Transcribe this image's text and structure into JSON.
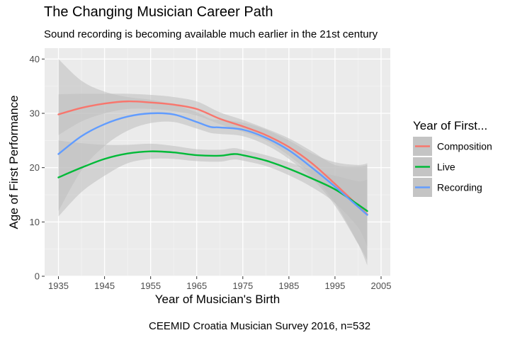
{
  "title": "The Changing Musician Career Path",
  "subtitle": "Sound recording is becoming available much earlier in the 21st century",
  "caption": "CEEMID Croatia Musician Survey 2016, n=532",
  "chart_data": {
    "type": "line",
    "title": "The Changing Musician Career Path",
    "subtitle": "Sound recording is becoming available much earlier in the 21st century",
    "xlabel": "Year of Musician's Birth",
    "ylabel": "Age of First Performance",
    "xlim": [
      1932,
      2007
    ],
    "ylim": [
      0,
      42
    ],
    "x_ticks": [
      1935,
      1945,
      1955,
      1965,
      1975,
      1985,
      1995,
      2005
    ],
    "y_ticks": [
      0,
      10,
      20,
      30,
      40
    ],
    "grid": true,
    "legend": {
      "title": "Year of First...",
      "position": "right"
    },
    "series": [
      {
        "name": "Composition",
        "color": "#F8766D",
        "band_color": "#bdbdbd",
        "x": [
          1935,
          1940,
          1945,
          1950,
          1955,
          1960,
          1965,
          1970,
          1975,
          1980,
          1985,
          1990,
          1995,
          2000,
          2002
        ],
        "y": [
          29.8,
          31.0,
          31.8,
          32.2,
          32.0,
          31.6,
          30.8,
          29.0,
          27.6,
          26.0,
          23.8,
          20.8,
          17.0,
          13.0,
          11.4
        ],
        "lower": [
          26.0,
          28.5,
          30.0,
          30.8,
          30.8,
          30.4,
          29.6,
          28.0,
          26.6,
          25.0,
          22.2,
          18.6,
          13.5,
          6.0,
          2.0
        ],
        "upper": [
          33.5,
          33.6,
          33.6,
          33.6,
          33.4,
          33.0,
          32.2,
          30.2,
          28.8,
          27.2,
          25.4,
          23.0,
          20.5,
          20.2,
          20.5
        ]
      },
      {
        "name": "Live",
        "color": "#00BA38",
        "band_color": "#bdbdbd",
        "x": [
          1935,
          1940,
          1945,
          1950,
          1955,
          1960,
          1965,
          1970,
          1973,
          1975,
          1980,
          1985,
          1990,
          1995,
          2000,
          2002
        ],
        "y": [
          18.2,
          20.0,
          21.6,
          22.6,
          23.0,
          22.8,
          22.3,
          22.2,
          22.5,
          22.3,
          21.3,
          19.8,
          18.0,
          16.0,
          13.2,
          12.0
        ],
        "lower": [
          11.0,
          15.5,
          18.5,
          20.8,
          21.6,
          21.6,
          21.2,
          21.1,
          21.5,
          21.3,
          20.3,
          18.6,
          16.4,
          13.5,
          9.0,
          5.5
        ],
        "upper": [
          25.0,
          24.5,
          24.2,
          24.2,
          24.4,
          24.0,
          23.4,
          23.3,
          23.6,
          23.3,
          22.3,
          21.0,
          19.6,
          18.5,
          17.5,
          17.8
        ]
      },
      {
        "name": "Recording",
        "color": "#619CFF",
        "band_color": "#bdbdbd",
        "x": [
          1935,
          1940,
          1945,
          1950,
          1955,
          1960,
          1965,
          1968,
          1970,
          1975,
          1980,
          1985,
          1990,
          1995,
          2000,
          2002
        ],
        "y": [
          22.5,
          25.8,
          28.0,
          29.4,
          30.0,
          29.8,
          28.4,
          27.5,
          27.4,
          27.0,
          25.5,
          23.2,
          20.0,
          16.5,
          12.8,
          11.3
        ],
        "lower": [
          12.0,
          19.5,
          24.0,
          26.8,
          28.2,
          28.4,
          27.2,
          26.4,
          26.2,
          25.8,
          24.2,
          21.6,
          18.0,
          13.0,
          6.0,
          3.0
        ],
        "upper": [
          40.0,
          36.0,
          34.0,
          33.0,
          32.5,
          31.6,
          30.2,
          29.0,
          28.8,
          28.3,
          27.0,
          25.0,
          22.6,
          21.0,
          20.5,
          20.8
        ]
      }
    ]
  }
}
